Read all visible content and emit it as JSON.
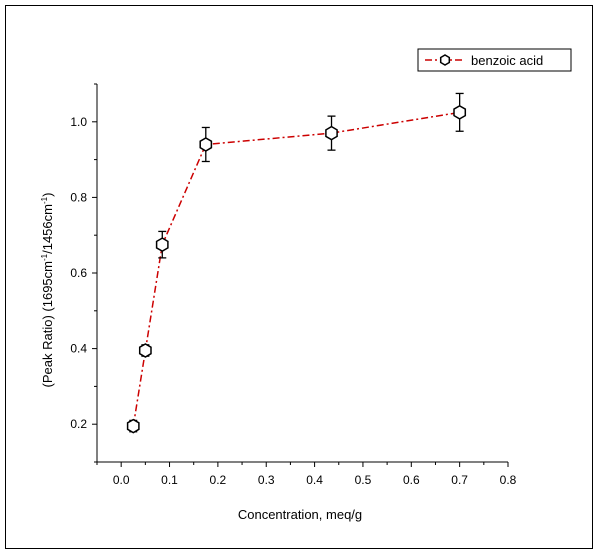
{
  "chart_data": {
    "type": "line",
    "title": "",
    "xlabel": "Concentration, meq/g",
    "ylabel_parts": [
      "(Peak Ratio) (1695cm",
      "-1",
      "/1456cm",
      "-1",
      ")"
    ],
    "xlim": [
      -0.05,
      0.8
    ],
    "ylim": [
      0.1,
      1.1
    ],
    "x_ticks": [
      0.0,
      0.1,
      0.2,
      0.3,
      0.4,
      0.5,
      0.6,
      0.7,
      0.8
    ],
    "x_tick_labels": [
      "0.0",
      "0.1",
      "0.2",
      "0.3",
      "0.4",
      "0.5",
      "0.6",
      "0.7",
      "0.8"
    ],
    "y_ticks": [
      0.2,
      0.4,
      0.6,
      0.8,
      1.0
    ],
    "y_tick_labels": [
      "0.2",
      "0.4",
      "0.6",
      "0.8",
      "1.0"
    ],
    "legend_position": "top-right",
    "grid": false,
    "series": [
      {
        "name": "benzoic acid",
        "color": "#cc0000",
        "marker": "hexagon",
        "line_style": "dash-dot",
        "x": [
          0.025,
          0.05,
          0.085,
          0.175,
          0.435,
          0.7
        ],
        "y": [
          0.195,
          0.395,
          0.675,
          0.94,
          0.97,
          1.025
        ],
        "error": [
          0.015,
          0.015,
          0.035,
          0.045,
          0.045,
          0.05
        ]
      }
    ]
  }
}
